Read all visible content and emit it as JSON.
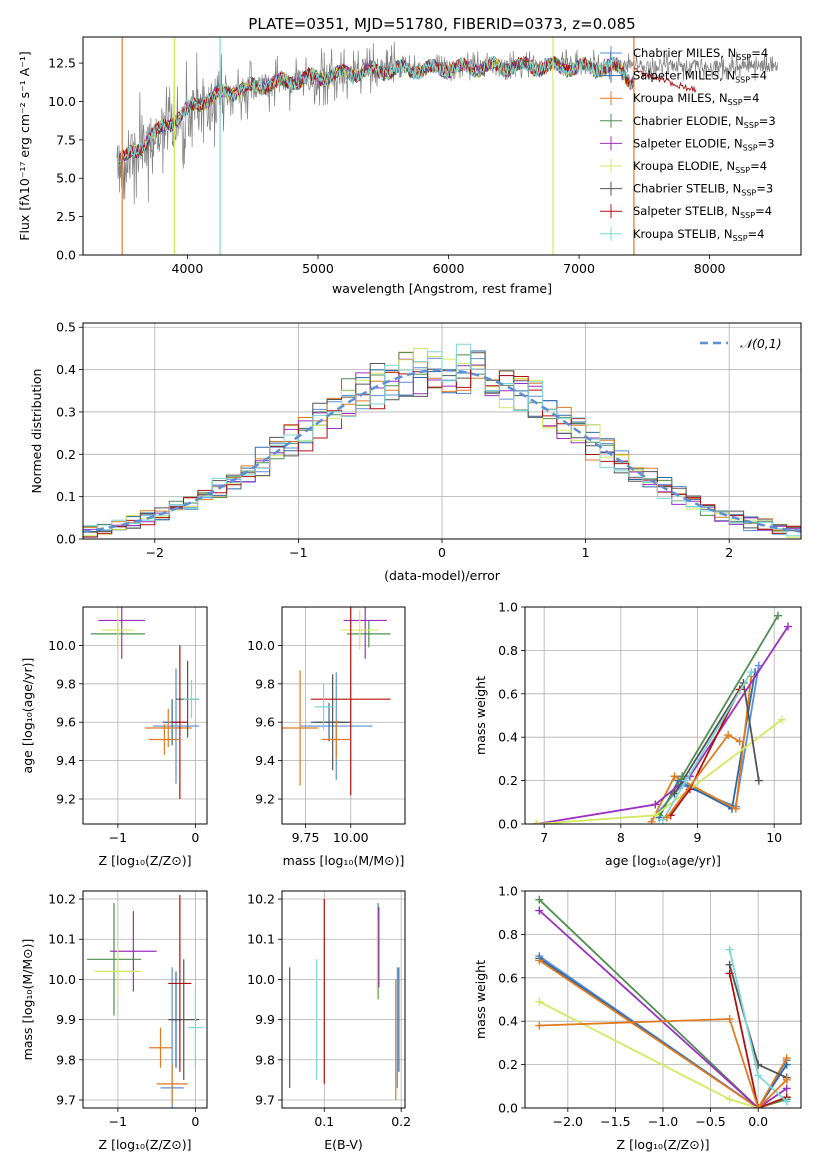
{
  "figure_title": "PLATE=0351, MJD=51780, FIBERID=0373, z=0.085",
  "models": [
    {
      "name": "Chabrier MILES",
      "n_ssp": 4,
      "color": "#5b8fd6"
    },
    {
      "name": "Salpeter MILES",
      "n_ssp": 4,
      "color": "#2b6aa8"
    },
    {
      "name": "Kroupa MILES",
      "n_ssp": 4,
      "color": "#e07b22"
    },
    {
      "name": "Chabrier ELODIE",
      "n_ssp": 3,
      "color": "#4f8f4f"
    },
    {
      "name": "Salpeter ELODIE",
      "n_ssp": 3,
      "color": "#9b30c0"
    },
    {
      "name": "Kroupa ELODIE",
      "n_ssp": 4,
      "color": "#d4e860"
    },
    {
      "name": "Chabrier STELIB",
      "n_ssp": 3,
      "color": "#555555"
    },
    {
      "name": "Salpeter STELIB",
      "n_ssp": 4,
      "color": "#b01010"
    },
    {
      "name": "Kroupa STELIB",
      "n_ssp": 4,
      "color": "#7fd6d6"
    }
  ],
  "chart_data": [
    {
      "id": "spectrum",
      "type": "line",
      "xlabel": "wavelength [Angstrom, rest frame]",
      "ylabel": "Flux [f_λ 10^-17 erg cm^-2 s^-1 A^-1]",
      "xlim": [
        3200,
        8700
      ],
      "ylim": [
        0,
        14.2
      ],
      "xticks": [
        4000,
        5000,
        6000,
        7000,
        8000
      ],
      "yticks": [
        0.0,
        2.5,
        5.0,
        7.5,
        10.0,
        12.5
      ],
      "legend_position": "upper right",
      "data_continuum_x": [
        3500,
        3700,
        3900,
        4100,
        4300,
        4600,
        5000,
        5400,
        5800,
        6200,
        6600,
        7000,
        7400
      ],
      "data_continuum_y": [
        6.0,
        7.2,
        8.6,
        9.6,
        10.4,
        11.0,
        11.6,
        12.0,
        12.2,
        12.3,
        12.4,
        12.5,
        12.3
      ],
      "model_continuum_x": [
        3500,
        3600,
        3700,
        3800,
        3900,
        4000,
        4100,
        4300,
        4600,
        5000,
        5400,
        5800,
        6200,
        6600,
        7000,
        7300,
        7400
      ],
      "model_continuum_y": [
        6.2,
        6.7,
        7.6,
        8.2,
        8.8,
        9.4,
        10.0,
        10.6,
        11.1,
        11.6,
        12.0,
        12.1,
        12.2,
        12.3,
        12.2,
        12.2,
        11.4
      ],
      "dropouts": [
        {
          "x": 3500,
          "color": "#e07b22"
        },
        {
          "x": 3900,
          "color": "#d4e860"
        },
        {
          "x": 4250,
          "color": "#7fd6d6"
        },
        {
          "x": 6800,
          "color": "#d4e860"
        },
        {
          "x": 7420,
          "color": "#e07b22"
        }
      ]
    },
    {
      "id": "residuals",
      "type": "histogram",
      "xlabel": "(data-model)/error",
      "ylabel": "Normed distribution",
      "xlim": [
        -2.5,
        2.5
      ],
      "ylim": [
        0,
        0.51
      ],
      "xticks": [
        -2,
        -1,
        0,
        1,
        2
      ],
      "yticks": [
        0.0,
        0.1,
        0.2,
        0.3,
        0.4,
        0.5
      ],
      "bin_width": 0.1,
      "bin_start": -2.5,
      "reference_curve": {
        "label": "𝒩(0,1)",
        "mean": 0,
        "sigma": 1,
        "color": "#5b8fd6",
        "dashed": true
      },
      "legend_position": "upper right"
    },
    {
      "id": "age_vs_Z",
      "type": "errorbar",
      "xlabel": "Z [log10(Z/Z⊙)]",
      "ylabel": "age [log10(age/yr)]",
      "xlim": [
        -1.45,
        0.15
      ],
      "ylim": [
        9.07,
        10.2
      ],
      "xticks": [
        -1,
        0
      ],
      "yticks": [
        9.2,
        9.4,
        9.6,
        9.8,
        10.0
      ],
      "points": [
        {
          "model": 0,
          "x": -0.25,
          "y": 9.58,
          "xerr": 0.3,
          "yerr": 0.3
        },
        {
          "model": 1,
          "x": -0.3,
          "y": 9.6,
          "xerr": 0.12,
          "yerr": 0.12
        },
        {
          "model": 2,
          "x": -0.35,
          "y": 9.57,
          "xerr": 0.3,
          "yerr": 0.1
        },
        {
          "model": 3,
          "x": -1.0,
          "y": 10.06,
          "xerr": 0.35,
          "yerr": 0.08
        },
        {
          "model": 4,
          "x": -0.95,
          "y": 10.13,
          "xerr": 0.3,
          "yerr": 0.2
        },
        {
          "model": 5,
          "x": -1.0,
          "y": 10.08,
          "xerr": 0.2,
          "yerr": 0.1
        },
        {
          "model": 6,
          "x": -0.1,
          "y": 9.72,
          "xerr": 0.15,
          "yerr": 0.2
        },
        {
          "model": 7,
          "x": -0.2,
          "y": 9.6,
          "xerr": 0.1,
          "yerr": 0.4
        },
        {
          "model": 8,
          "x": -0.05,
          "y": 9.72,
          "xerr": 0.1,
          "yerr": 0.1
        },
        {
          "model": 2,
          "x": -0.4,
          "y": 9.51,
          "xerr": 0.2,
          "yerr": 0.08
        }
      ]
    },
    {
      "id": "age_vs_mass",
      "type": "errorbar",
      "xlabel": "mass [log10(M/M⊙)]",
      "ylabel": "",
      "xlim": [
        9.62,
        10.3
      ],
      "ylim": [
        9.07,
        10.2
      ],
      "xticks": [
        9.75,
        10.0
      ],
      "xtick_labels": [
        "9.75",
        "10.00"
      ],
      "yticks": [
        9.2,
        9.4,
        9.6,
        9.8,
        10.0
      ],
      "points": [
        {
          "model": 0,
          "x": 9.92,
          "y": 9.58,
          "xerr": 0.2,
          "yerr": 0.28
        },
        {
          "model": 1,
          "x": 9.88,
          "y": 9.6,
          "xerr": 0.1,
          "yerr": 0.1
        },
        {
          "model": 2,
          "x": 9.72,
          "y": 9.57,
          "xerr": 0.1,
          "yerr": 0.3
        },
        {
          "model": 3,
          "x": 10.1,
          "y": 10.06,
          "xerr": 0.12,
          "yerr": 0.07
        },
        {
          "model": 4,
          "x": 10.08,
          "y": 10.13,
          "xerr": 0.12,
          "yerr": 0.2
        },
        {
          "model": 5,
          "x": 10.05,
          "y": 10.08,
          "xerr": 0.1,
          "yerr": 0.1
        },
        {
          "model": 6,
          "x": 9.9,
          "y": 9.6,
          "xerr": 0.1,
          "yerr": 0.25
        },
        {
          "model": 7,
          "x": 10.0,
          "y": 9.72,
          "xerr": 0.22,
          "yerr": 0.5
        },
        {
          "model": 8,
          "x": 9.85,
          "y": 9.68,
          "xerr": 0.05,
          "yerr": 0.12
        },
        {
          "model": 2,
          "x": 9.92,
          "y": 9.51,
          "xerr": 0.08,
          "yerr": 0.1
        }
      ]
    },
    {
      "id": "mass_weight_vs_age",
      "type": "line",
      "xlabel": "age [log10(age/yr)]",
      "ylabel": "mass weight",
      "xlim": [
        6.75,
        10.35
      ],
      "ylim": [
        0,
        1.0
      ],
      "xticks": [
        7,
        8,
        9,
        10
      ],
      "yticks": [
        0.0,
        0.2,
        0.4,
        0.6,
        0.8,
        1.0
      ],
      "series": [
        {
          "model": 0,
          "x": [
            8.45,
            8.8,
            9.5,
            9.8
          ],
          "y": [
            0.04,
            0.18,
            0.08,
            0.73
          ]
        },
        {
          "model": 1,
          "x": [
            8.5,
            8.75,
            9.45,
            9.75
          ],
          "y": [
            0.03,
            0.2,
            0.07,
            0.7
          ]
        },
        {
          "model": 2,
          "x": [
            8.4,
            8.7,
            9.5,
            9.7
          ],
          "y": [
            0.01,
            0.22,
            0.07,
            0.68
          ]
        },
        {
          "model": 3,
          "x": [
            8.5,
            8.8,
            10.05
          ],
          "y": [
            0.04,
            0.22,
            0.96
          ]
        },
        {
          "model": 4,
          "x": [
            6.9,
            8.45,
            8.9,
            10.18
          ],
          "y": [
            0.0,
            0.09,
            0.22,
            0.91
          ]
        },
        {
          "model": 5,
          "x": [
            6.9,
            8.45,
            10.1
          ],
          "y": [
            0.0,
            0.04,
            0.48
          ]
        },
        {
          "model": 6,
          "x": [
            8.7,
            9.6,
            9.8
          ],
          "y": [
            0.14,
            0.65,
            0.2
          ]
        },
        {
          "model": 7,
          "x": [
            8.65,
            8.9,
            9.55
          ],
          "y": [
            0.04,
            0.16,
            0.62
          ]
        },
        {
          "model": 8,
          "x": [
            8.55,
            8.85,
            9.7
          ],
          "y": [
            0.02,
            0.2,
            0.7
          ]
        },
        {
          "model": 2,
          "x": [
            8.6,
            9.4,
            9.55
          ],
          "y": [
            0.03,
            0.41,
            0.38
          ]
        }
      ]
    },
    {
      "id": "mass_vs_Z",
      "type": "errorbar",
      "xlabel": "Z [log10(Z/Z⊙)]",
      "ylabel": "mass [log10(M/M⊙)]",
      "xlim": [
        -1.45,
        0.15
      ],
      "ylim": [
        9.68,
        10.22
      ],
      "xticks": [
        -1,
        0
      ],
      "yticks": [
        9.7,
        9.8,
        9.9,
        10.0,
        10.1,
        10.2
      ],
      "points": [
        {
          "model": 0,
          "x": -0.3,
          "y": 9.73,
          "xerr": 0.15,
          "yerr": 0.3
        },
        {
          "model": 1,
          "x": -0.25,
          "y": 9.9,
          "xerr": 0.05,
          "yerr": 0.12
        },
        {
          "model": 2,
          "x": -0.3,
          "y": 9.74,
          "xerr": 0.2,
          "yerr": 0.05
        },
        {
          "model": 3,
          "x": -1.05,
          "y": 10.05,
          "xerr": 0.35,
          "yerr": 0.14
        },
        {
          "model": 4,
          "x": -0.8,
          "y": 10.07,
          "xerr": 0.3,
          "yerr": 0.1
        },
        {
          "model": 5,
          "x": -1.0,
          "y": 10.02,
          "xerr": 0.3,
          "yerr": 0.06
        },
        {
          "model": 6,
          "x": -0.15,
          "y": 9.9,
          "xerr": 0.2,
          "yerr": 0.15
        },
        {
          "model": 7,
          "x": -0.2,
          "y": 9.99,
          "xerr": 0.15,
          "yerr": 0.22
        },
        {
          "model": 8,
          "x": 0.0,
          "y": 9.88,
          "xerr": 0.1,
          "yerr": 0.1
        },
        {
          "model": 2,
          "x": -0.45,
          "y": 9.83,
          "xerr": 0.15,
          "yerr": 0.05
        }
      ]
    },
    {
      "id": "mass_vs_EBV",
      "type": "errorbar",
      "xlabel": "E(B-V)",
      "ylabel": "",
      "xlim": [
        0.045,
        0.205
      ],
      "ylim": [
        9.68,
        10.22
      ],
      "xticks": [
        0.1,
        0.2
      ],
      "yticks": [
        9.7,
        9.8,
        9.9,
        10.0,
        10.1,
        10.2
      ],
      "points": [
        {
          "model": 0,
          "x": 0.195,
          "y": 9.88,
          "xerr": 0.0,
          "yerr": 0.15
        },
        {
          "model": 1,
          "x": 0.197,
          "y": 9.9,
          "xerr": 0.0,
          "yerr": 0.13
        },
        {
          "model": 2,
          "x": 0.193,
          "y": 9.85,
          "xerr": 0.0,
          "yerr": 0.15
        },
        {
          "model": 3,
          "x": 0.17,
          "y": 10.07,
          "xerr": 0.0,
          "yerr": 0.12
        },
        {
          "model": 4,
          "x": 0.171,
          "y": 10.08,
          "xerr": 0.0,
          "yerr": 0.1
        },
        {
          "model": 5,
          "x": 0.169,
          "y": 10.05,
          "xerr": 0.0,
          "yerr": 0.1
        },
        {
          "model": 6,
          "x": 0.055,
          "y": 9.88,
          "xerr": 0.0,
          "yerr": 0.15
        },
        {
          "model": 7,
          "x": 0.1,
          "y": 9.97,
          "xerr": 0.0,
          "yerr": 0.23
        },
        {
          "model": 8,
          "x": 0.09,
          "y": 9.9,
          "xerr": 0.0,
          "yerr": 0.15
        }
      ]
    },
    {
      "id": "mass_weight_vs_Z",
      "type": "line",
      "xlabel": "Z [log10(Z/Z⊙)]",
      "ylabel": "mass weight",
      "xlim": [
        -2.45,
        0.45
      ],
      "ylim": [
        0,
        1.0
      ],
      "xticks": [
        -2.0,
        -1.5,
        -1.0,
        -0.5,
        0.0
      ],
      "yticks": [
        0.0,
        0.2,
        0.4,
        0.6,
        0.8,
        1.0
      ],
      "series": [
        {
          "model": 0,
          "x": [
            -2.3,
            0.0,
            0.3
          ],
          "y": [
            0.7,
            0.0,
            0.22
          ]
        },
        {
          "model": 1,
          "x": [
            -2.3,
            0.0,
            0.3
          ],
          "y": [
            0.69,
            0.0,
            0.2
          ]
        },
        {
          "model": 2,
          "x": [
            -2.3,
            0.0,
            0.3
          ],
          "y": [
            0.68,
            0.0,
            0.23
          ]
        },
        {
          "model": 3,
          "x": [
            -2.3,
            0.0,
            0.3
          ],
          "y": [
            0.96,
            0.0,
            0.04
          ]
        },
        {
          "model": 4,
          "x": [
            -2.3,
            0.0,
            0.3
          ],
          "y": [
            0.91,
            0.0,
            0.09
          ]
        },
        {
          "model": 5,
          "x": [
            -2.3,
            -0.3,
            0.0,
            0.3
          ],
          "y": [
            0.49,
            0.04,
            0.0,
            0.05
          ]
        },
        {
          "model": 6,
          "x": [
            -0.3,
            0.0,
            0.3
          ],
          "y": [
            0.66,
            0.2,
            0.14
          ]
        },
        {
          "model": 7,
          "x": [
            -0.3,
            0.0,
            0.3
          ],
          "y": [
            0.62,
            0.0,
            0.05
          ]
        },
        {
          "model": 8,
          "x": [
            -0.3,
            0.0,
            0.3
          ],
          "y": [
            0.73,
            0.15,
            0.03
          ]
        },
        {
          "model": 2,
          "x": [
            -2.3,
            -0.3,
            0.0,
            0.3
          ],
          "y": [
            0.38,
            0.41,
            0.0,
            0.13
          ]
        }
      ]
    }
  ]
}
